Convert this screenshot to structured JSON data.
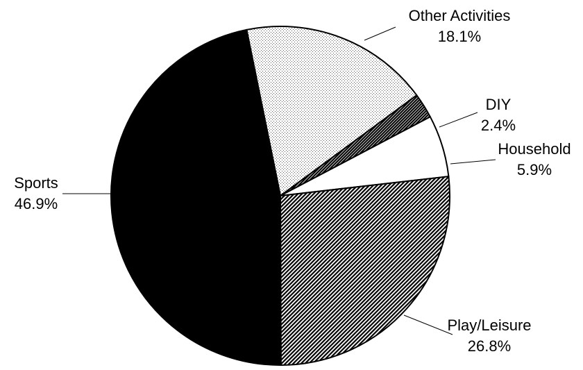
{
  "chart_data": {
    "type": "pie",
    "title": "",
    "slices": [
      {
        "label": "Other Activities",
        "value": 18.1,
        "value_text": "18.1%",
        "pattern": "dots"
      },
      {
        "label": "DIY",
        "value": 2.4,
        "value_text": "2.4%",
        "pattern": "hatch-dark"
      },
      {
        "label": "Household",
        "value": 5.9,
        "value_text": "5.9%",
        "pattern": "white"
      },
      {
        "label": "Play/Leisure",
        "value": 26.8,
        "value_text": "26.8%",
        "pattern": "hatch"
      },
      {
        "label": "Sports",
        "value": 46.9,
        "value_text": "46.9%",
        "pattern": "black"
      }
    ],
    "colors": {
      "black": "#000000",
      "white": "#ffffff",
      "hatch_fg": "#000000",
      "dots_fg": "#555555"
    }
  }
}
